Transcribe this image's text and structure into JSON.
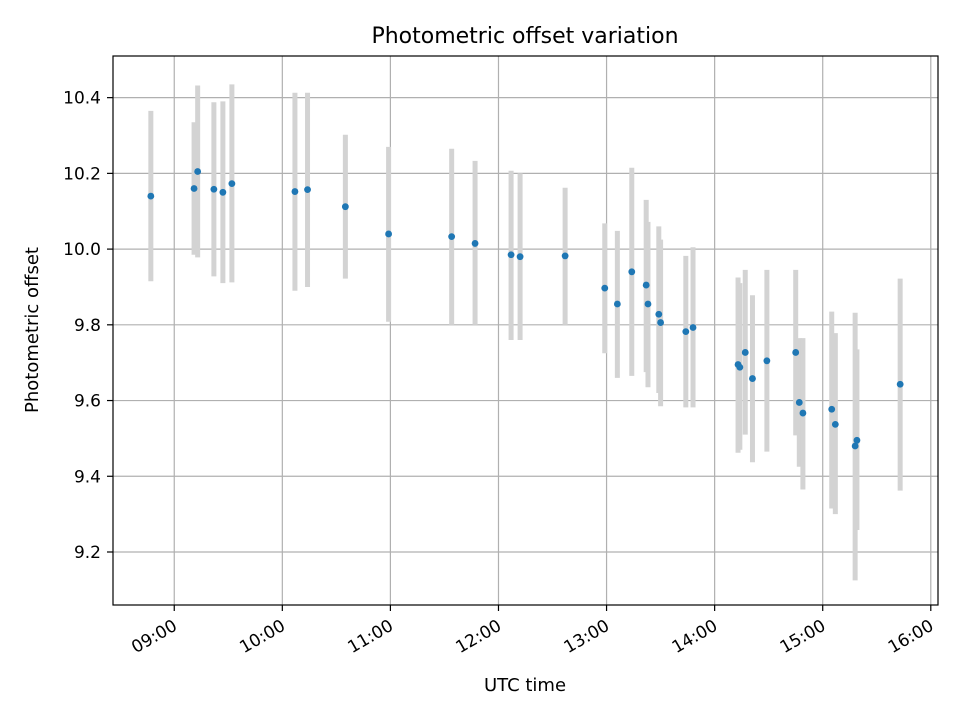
{
  "chart_data": {
    "type": "scatter",
    "title": "Photometric offset variation",
    "xlabel": "UTC time",
    "ylabel": "Photometric offset",
    "x_tick_labels": [
      "09:00",
      "10:00",
      "11:00",
      "12:00",
      "13:00",
      "14:00",
      "15:00",
      "16:00"
    ],
    "y_tick_labels": [
      "9.2",
      "9.4",
      "9.6",
      "9.8",
      "10.0",
      "10.2",
      "10.4"
    ],
    "x_ticks": [
      "09:00",
      "10:00",
      "11:00",
      "12:00",
      "13:00",
      "14:00",
      "15:00",
      "16:00"
    ],
    "y_ticks": [
      9.2,
      9.4,
      9.6,
      9.8,
      10.0,
      10.2,
      10.4
    ],
    "xlim": [
      "08:26",
      "16:04"
    ],
    "ylim": [
      9.06,
      10.51
    ],
    "grid": true,
    "colors": {
      "point": "#1f77b4",
      "errorbar": "#d3d3d3",
      "grid": "#b0b0b0"
    },
    "points": [
      {
        "x": "08:47",
        "y": 10.14,
        "ylo": 9.915,
        "yhi": 10.365
      },
      {
        "x": "09:11",
        "y": 10.16,
        "ylo": 9.985,
        "yhi": 10.335
      },
      {
        "x": "09:13",
        "y": 10.205,
        "ylo": 9.978,
        "yhi": 10.432
      },
      {
        "x": "09:22",
        "y": 10.158,
        "ylo": 9.928,
        "yhi": 10.388
      },
      {
        "x": "09:27",
        "y": 10.15,
        "ylo": 9.91,
        "yhi": 10.39
      },
      {
        "x": "09:32",
        "y": 10.173,
        "ylo": 9.912,
        "yhi": 10.435
      },
      {
        "x": "10:07",
        "y": 10.152,
        "ylo": 9.89,
        "yhi": 10.413
      },
      {
        "x": "10:14",
        "y": 10.157,
        "ylo": 9.9,
        "yhi": 10.413
      },
      {
        "x": "10:35",
        "y": 10.112,
        "ylo": 9.922,
        "yhi": 10.302
      },
      {
        "x": "10:59",
        "y": 10.04,
        "ylo": 9.808,
        "yhi": 10.27
      },
      {
        "x": "11:34",
        "y": 10.033,
        "ylo": 9.8,
        "yhi": 10.265
      },
      {
        "x": "11:47",
        "y": 10.015,
        "ylo": 9.8,
        "yhi": 10.233
      },
      {
        "x": "12:07",
        "y": 9.985,
        "ylo": 9.76,
        "yhi": 10.207
      },
      {
        "x": "12:12",
        "y": 9.98,
        "ylo": 9.76,
        "yhi": 10.2
      },
      {
        "x": "12:37",
        "y": 9.982,
        "ylo": 9.8,
        "yhi": 10.162
      },
      {
        "x": "12:59",
        "y": 9.897,
        "ylo": 9.725,
        "yhi": 10.068
      },
      {
        "x": "13:06",
        "y": 9.855,
        "ylo": 9.66,
        "yhi": 10.048
      },
      {
        "x": "13:14",
        "y": 9.94,
        "ylo": 9.665,
        "yhi": 10.215
      },
      {
        "x": "13:22",
        "y": 9.905,
        "ylo": 9.675,
        "yhi": 10.13
      },
      {
        "x": "13:23",
        "y": 9.855,
        "ylo": 9.635,
        "yhi": 10.072
      },
      {
        "x": "13:29",
        "y": 9.828,
        "ylo": 9.62,
        "yhi": 10.06
      },
      {
        "x": "13:30",
        "y": 9.806,
        "ylo": 9.585,
        "yhi": 10.025
      },
      {
        "x": "13:44",
        "y": 9.782,
        "ylo": 9.582,
        "yhi": 9.982
      },
      {
        "x": "13:48",
        "y": 9.793,
        "ylo": 9.582,
        "yhi": 10.005
      },
      {
        "x": "14:13",
        "y": 9.695,
        "ylo": 9.462,
        "yhi": 9.925
      },
      {
        "x": "14:14",
        "y": 9.688,
        "ylo": 9.47,
        "yhi": 9.91
      },
      {
        "x": "14:17",
        "y": 9.727,
        "ylo": 9.51,
        "yhi": 9.945
      },
      {
        "x": "14:21",
        "y": 9.658,
        "ylo": 9.437,
        "yhi": 9.878
      },
      {
        "x": "14:29",
        "y": 9.705,
        "ylo": 9.465,
        "yhi": 9.945
      },
      {
        "x": "14:45",
        "y": 9.727,
        "ylo": 9.508,
        "yhi": 9.945
      },
      {
        "x": "14:47",
        "y": 9.595,
        "ylo": 9.425,
        "yhi": 9.765
      },
      {
        "x": "14:49",
        "y": 9.567,
        "ylo": 9.365,
        "yhi": 9.765
      },
      {
        "x": "15:05",
        "y": 9.577,
        "ylo": 9.315,
        "yhi": 9.835
      },
      {
        "x": "15:07",
        "y": 9.537,
        "ylo": 9.3,
        "yhi": 9.778
      },
      {
        "x": "15:18",
        "y": 9.48,
        "ylo": 9.125,
        "yhi": 9.832
      },
      {
        "x": "15:19",
        "y": 9.495,
        "ylo": 9.258,
        "yhi": 9.735
      },
      {
        "x": "15:43",
        "y": 9.643,
        "ylo": 9.362,
        "yhi": 9.922
      }
    ]
  }
}
